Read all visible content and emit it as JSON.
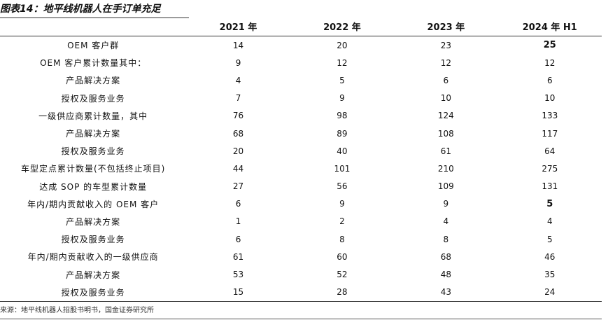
{
  "title": "图表14：地平线机器人在手订单充足",
  "table": {
    "columns": [
      "2021 年",
      "2022 年",
      "2023 年",
      "2024 年 H1"
    ],
    "rows": [
      [
        "OEM 客户群",
        14,
        20,
        23,
        25
      ],
      [
        "OEM 客户累计数量其中：",
        9,
        12,
        12,
        12
      ],
      [
        "产品解决方案",
        4,
        5,
        6,
        6
      ],
      [
        "授权及服务业务",
        7,
        9,
        10,
        10
      ],
      [
        "一级供应商累计数量，其中",
        76,
        98,
        124,
        133
      ],
      [
        "产品解决方案",
        68,
        89,
        108,
        117
      ],
      [
        "授权及服务业务",
        20,
        40,
        61,
        64
      ],
      [
        "车型定点累计数量(不包括终止项目)",
        44,
        101,
        210,
        275
      ],
      [
        "达成 SOP 的车型累计数量",
        27,
        56,
        109,
        131
      ],
      [
        "年内/期内贡献收入的 OEM 客户",
        6,
        9,
        9,
        5
      ],
      [
        "产品解决方案",
        1,
        2,
        4,
        4
      ],
      [
        "授权及服务业务",
        6,
        8,
        8,
        5
      ],
      [
        "年内/期内贡献收入的一级供应商",
        61,
        60,
        68,
        46
      ],
      [
        "产品解决方案",
        53,
        52,
        48,
        35
      ],
      [
        "授权及服务业务",
        15,
        28,
        43,
        24
      ]
    ]
  },
  "source": "来源：地平线机器人招股书明书，国金证券研究所"
}
